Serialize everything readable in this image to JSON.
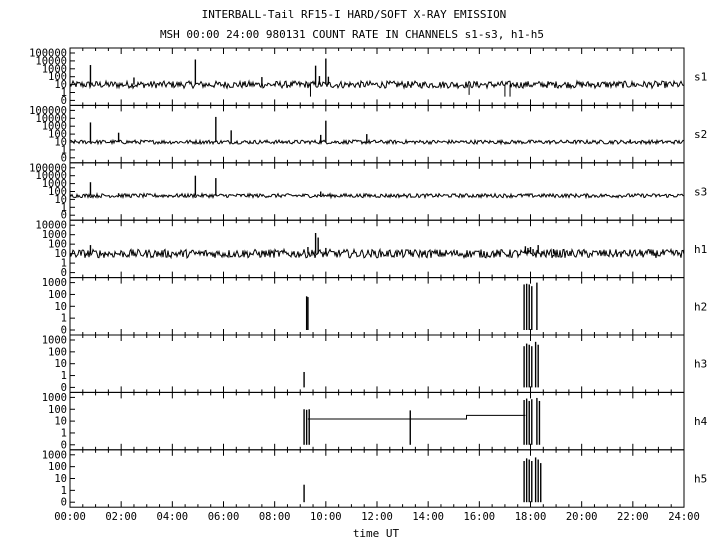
{
  "chart_data": {
    "type": "line",
    "title": "INTERBALL-Tail RF15-I HARD/SOFT X-RAY EMISSION",
    "subtitle": "MSH 00:00 24:00 980131  COUNT RATE IN CHANNELS s1-s3, h1-h5",
    "xlabel": "time UT",
    "xlim": [
      0,
      24
    ],
    "x_tick_labels": [
      "00:00",
      "02:00",
      "04:00",
      "06:00",
      "08:00",
      "10:00",
      "12:00",
      "14:00",
      "16:00",
      "18:00",
      "20:00",
      "22:00",
      "24:00"
    ],
    "grid": false,
    "y_scale": "log",
    "panels": [
      {
        "name": "s1",
        "ylim": [
          0,
          100000
        ],
        "y_tick_labels": [
          "100000",
          "10000",
          "1000",
          "100",
          "10",
          "1",
          "0"
        ],
        "baseline": 10,
        "noise": "high",
        "spikes": [
          [
            0.8,
            3000
          ],
          [
            2.5,
            80
          ],
          [
            4.9,
            15000
          ],
          [
            7.5,
            90
          ],
          [
            9.6,
            2500
          ],
          [
            9.75,
            120
          ],
          [
            10.0,
            20000
          ],
          [
            10.1,
            100
          ]
        ],
        "dips": [
          [
            9.4,
            0.3
          ],
          [
            15.6,
            0.5
          ],
          [
            17.0,
            0.3
          ],
          [
            17.2,
            0.3
          ]
        ]
      },
      {
        "name": "s2",
        "ylim": [
          0,
          100000
        ],
        "y_tick_labels": [
          "100000",
          "10000",
          "1000",
          "100",
          "10",
          "1",
          "0"
        ],
        "baseline": 10,
        "noise": "medium",
        "spikes": [
          [
            0.8,
            3000
          ],
          [
            1.9,
            150
          ],
          [
            5.7,
            15000
          ],
          [
            6.3,
            300
          ],
          [
            9.8,
            80
          ],
          [
            10.0,
            5000
          ],
          [
            11.6,
            100
          ],
          [
            21.9,
            20
          ]
        ],
        "dips": []
      },
      {
        "name": "s3",
        "ylim": [
          0,
          100000
        ],
        "y_tick_labels": [
          "100000",
          "10000",
          "1000",
          "100",
          "10",
          "1",
          "0"
        ],
        "baseline": 30,
        "noise": "medium",
        "spikes": [
          [
            0.8,
            1500
          ],
          [
            1.9,
            60
          ],
          [
            4.9,
            10000
          ],
          [
            5.7,
            5000
          ],
          [
            9.8,
            100
          ]
        ],
        "dips": []
      },
      {
        "name": "h1",
        "ylim": [
          0,
          10000
        ],
        "y_tick_labels": [
          "10000",
          "1000",
          "100",
          "10",
          "1",
          "0"
        ],
        "baseline": 10,
        "noise": "high",
        "spikes": [
          [
            0.8,
            80
          ],
          [
            9.3,
            50
          ],
          [
            9.6,
            1500
          ],
          [
            9.7,
            500
          ],
          [
            10.0,
            40
          ],
          [
            13.3,
            25
          ],
          [
            17.8,
            60
          ],
          [
            17.9,
            40
          ],
          [
            18.0,
            50
          ],
          [
            18.1,
            30
          ],
          [
            18.3,
            80
          ],
          [
            18.9,
            30
          ]
        ],
        "dips": []
      },
      {
        "name": "h2",
        "ylim": [
          0,
          1000
        ],
        "y_tick_labels": [
          "1000",
          "100",
          "10",
          "1",
          "0"
        ],
        "baseline": 0,
        "noise": "none",
        "spikes": [
          [
            9.25,
            70
          ],
          [
            9.3,
            60
          ],
          [
            17.75,
            700
          ],
          [
            17.85,
            800
          ],
          [
            17.95,
            700
          ],
          [
            18.05,
            500
          ],
          [
            18.25,
            1000
          ]
        ],
        "dips": []
      },
      {
        "name": "h3",
        "ylim": [
          0,
          1000
        ],
        "y_tick_labels": [
          "1000",
          "100",
          "10",
          "1",
          "0"
        ],
        "baseline": 0,
        "noise": "none",
        "spikes": [
          [
            9.15,
            2
          ],
          [
            17.75,
            300
          ],
          [
            17.85,
            500
          ],
          [
            17.95,
            400
          ],
          [
            18.05,
            300
          ],
          [
            18.2,
            700
          ],
          [
            18.3,
            400
          ]
        ],
        "dips": []
      },
      {
        "name": "h4",
        "ylim": [
          0,
          1000
        ],
        "y_tick_labels": [
          "1000",
          "100",
          "10",
          "1",
          "0"
        ],
        "baseline": 0,
        "noise": "none",
        "spikes": [
          [
            9.15,
            100
          ],
          [
            9.25,
            90
          ],
          [
            9.35,
            100
          ],
          [
            13.3,
            80
          ],
          [
            17.75,
            600
          ],
          [
            17.85,
            800
          ],
          [
            17.95,
            500
          ],
          [
            18.05,
            700
          ],
          [
            18.25,
            900
          ],
          [
            18.35,
            500
          ]
        ],
        "steps": [
          [
            9.3,
            15
          ],
          [
            15.5,
            15
          ],
          [
            15.5,
            30
          ],
          [
            17.8,
            30
          ]
        ],
        "dips": []
      },
      {
        "name": "h5",
        "ylim": [
          0,
          1000
        ],
        "y_tick_labels": [
          "1000",
          "100",
          "10",
          "1",
          "0"
        ],
        "baseline": 0,
        "noise": "none",
        "spikes": [
          [
            9.15,
            3
          ],
          [
            17.75,
            300
          ],
          [
            17.85,
            500
          ],
          [
            17.95,
            400
          ],
          [
            18.05,
            300
          ],
          [
            18.2,
            600
          ],
          [
            18.3,
            400
          ],
          [
            18.4,
            200
          ]
        ],
        "dips": []
      }
    ]
  }
}
